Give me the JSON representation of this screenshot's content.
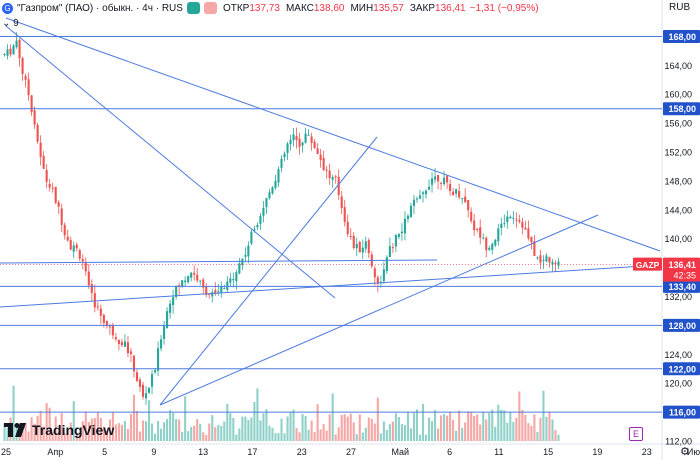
{
  "header": {
    "symbol_title": "\"Газпром\" (ПАО) · обыкн. · 4ч · RUS",
    "ohlc": [
      {
        "k": "ОТКР",
        "v": "137,73"
      },
      {
        "k": "МАКС",
        "v": "138,60"
      },
      {
        "k": "МИН",
        "v": "135,57"
      },
      {
        "k": "ЗАКР",
        "v": "136,41"
      }
    ],
    "change": "−1,31 (−0,95%)",
    "volume_row": "9",
    "currency": "RUB"
  },
  "branding": {
    "logo_text": "TradingView",
    "e_badge": "E"
  },
  "colors": {
    "up": "#26a69a",
    "down": "#ef5350",
    "vol_up": "#8fd1c9",
    "vol_down": "#f5a7a5",
    "drawing": "#4d7be0",
    "label_bg": "#2152c9",
    "last_price_bg": "#f23645"
  },
  "chart_data": {
    "type": "candlestick",
    "symbol": "GAZP",
    "timeframe": "4ч",
    "ylim": [
      112,
      170
    ],
    "y_ticks": [
      112,
      116,
      120,
      124,
      128,
      132,
      136,
      140,
      144,
      148,
      152,
      156,
      160,
      164,
      168
    ],
    "x_labels": [
      "25",
      "Апр",
      "5",
      "9",
      "13",
      "17",
      "23",
      "27",
      "Май",
      "6",
      "11",
      "15",
      "19",
      "23",
      "Июн"
    ],
    "last_price": {
      "symbol": "GAZP",
      "value": "136,41",
      "countdown": "42:35"
    },
    "horizontal_levels": [
      "168,00",
      "158,00",
      "133,40",
      "128,00",
      "122,00",
      "116,00"
    ],
    "price_path": [
      [
        0,
        165.5
      ],
      [
        2,
        166.0
      ],
      [
        4,
        167.5
      ],
      [
        6,
        163.0
      ],
      [
        8,
        160.0
      ],
      [
        10,
        156.0
      ],
      [
        12,
        151.0
      ],
      [
        14,
        148.0
      ],
      [
        16,
        146.5
      ],
      [
        18,
        144.0
      ],
      [
        20,
        141.0
      ],
      [
        22,
        139.0
      ],
      [
        24,
        138.5
      ],
      [
        26,
        137.0
      ],
      [
        28,
        133.0
      ],
      [
        30,
        131.0
      ],
      [
        32,
        129.5
      ],
      [
        34,
        128.0
      ],
      [
        36,
        127.0
      ],
      [
        38,
        126.0
      ],
      [
        40,
        125.5
      ],
      [
        42,
        123.5
      ],
      [
        44,
        120.5
      ],
      [
        46,
        118.0
      ],
      [
        48,
        119.5
      ],
      [
        50,
        122.0
      ],
      [
        52,
        126.5
      ],
      [
        54,
        130.0
      ],
      [
        56,
        132.5
      ],
      [
        58,
        133.5
      ],
      [
        60,
        134.5
      ],
      [
        62,
        135.5
      ],
      [
        64,
        134.5
      ],
      [
        66,
        133.0
      ],
      [
        68,
        132.5
      ],
      [
        70,
        132.0
      ],
      [
        72,
        133.0
      ],
      [
        74,
        133.5
      ],
      [
        76,
        135.0
      ],
      [
        78,
        136.5
      ],
      [
        80,
        138.0
      ],
      [
        82,
        140.5
      ],
      [
        84,
        142.5
      ],
      [
        86,
        144.5
      ],
      [
        88,
        146.5
      ],
      [
        90,
        148.5
      ],
      [
        92,
        150.5
      ],
      [
        94,
        153.0
      ],
      [
        96,
        154.0
      ],
      [
        98,
        153.0
      ],
      [
        100,
        154.5
      ],
      [
        102,
        153.5
      ],
      [
        104,
        152.0
      ],
      [
        106,
        150.0
      ],
      [
        108,
        148.5
      ],
      [
        110,
        148.0
      ],
      [
        112,
        144.5
      ],
      [
        114,
        141.0
      ],
      [
        116,
        139.0
      ],
      [
        118,
        138.5
      ],
      [
        120,
        139.5
      ],
      [
        122,
        136.5
      ],
      [
        124,
        133.5
      ],
      [
        126,
        135.5
      ],
      [
        128,
        138.5
      ],
      [
        130,
        140.0
      ],
      [
        132,
        141.0
      ],
      [
        134,
        143.5
      ],
      [
        136,
        145.0
      ],
      [
        138,
        145.5
      ],
      [
        140,
        147.0
      ],
      [
        142,
        148.5
      ],
      [
        144,
        148.5
      ],
      [
        146,
        148.0
      ],
      [
        148,
        146.5
      ],
      [
        150,
        146.5
      ],
      [
        152,
        146.0
      ],
      [
        154,
        144.0
      ],
      [
        156,
        141.5
      ],
      [
        158,
        140.5
      ],
      [
        160,
        139.0
      ],
      [
        162,
        139.5
      ],
      [
        164,
        141.0
      ],
      [
        166,
        142.5
      ],
      [
        168,
        143.5
      ],
      [
        170,
        143.0
      ],
      [
        172,
        142.0
      ],
      [
        174,
        140.0
      ],
      [
        176,
        138.0
      ],
      [
        178,
        136.5
      ],
      [
        180,
        137.5
      ],
      [
        182,
        136.4
      ]
    ]
  }
}
